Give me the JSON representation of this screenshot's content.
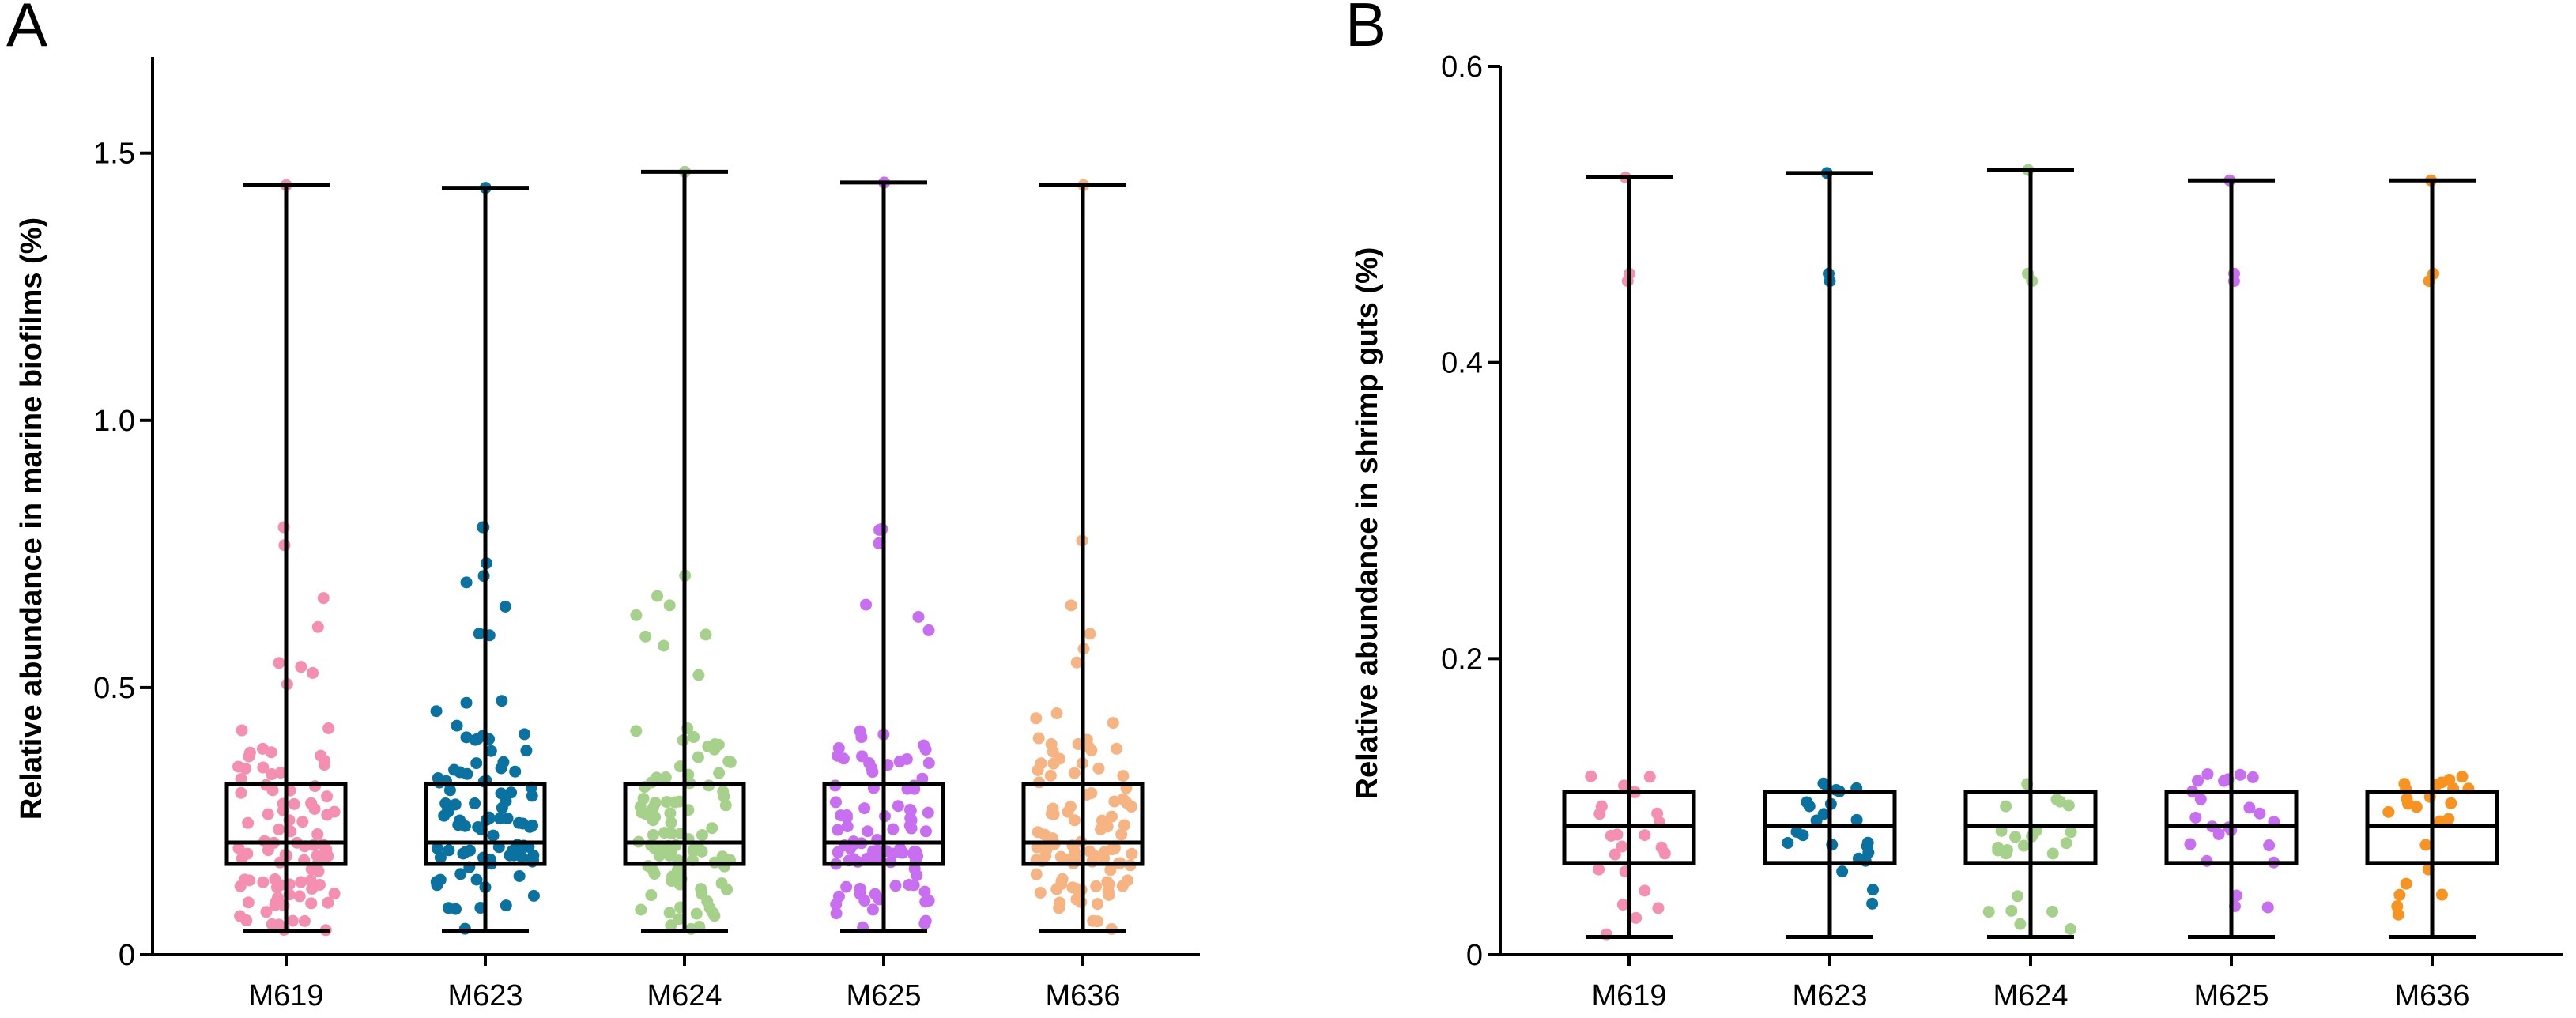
{
  "figure": {
    "panels": [
      {
        "id": "A",
        "letter": "A",
        "chart_data": {
          "type": "box",
          "ylabel": "Relative abundance in marine biofilms (%)",
          "ylim": [
            0,
            1.68
          ],
          "yticks": [
            0,
            0.5,
            1.0,
            1.5
          ],
          "ytick_labels": [
            "0",
            "0.5",
            "1.0",
            "1.5"
          ],
          "categories": [
            "M619",
            "M623",
            "M624",
            "M625",
            "M636"
          ],
          "colors": [
            "#f48fb1",
            "#0a72a0",
            "#a6d18a",
            "#c86ef0",
            "#f5b482"
          ],
          "box": {
            "min": 0.045,
            "q1": 0.17,
            "median": 0.21,
            "q3": 0.32,
            "max": 1.44
          },
          "series_max": [
            1.44,
            1.435,
            1.465,
            1.445,
            1.44
          ],
          "n_points": 100
        }
      },
      {
        "id": "B",
        "letter": "B",
        "chart_data": {
          "type": "box",
          "ylabel": "Relative abundance in shrimp guts (%)",
          "ylim": [
            0,
            0.6
          ],
          "yticks": [
            0,
            0.2,
            0.4,
            0.6
          ],
          "ytick_labels": [
            "0",
            "0.2",
            "0.4",
            "0.6"
          ],
          "categories": [
            "M619",
            "M623",
            "M624",
            "M625",
            "M636"
          ],
          "colors": [
            "#f48fb1",
            "#0a72a0",
            "#a6d18a",
            "#c86ef0",
            "#f7931e"
          ],
          "box": {
            "min": 0.012,
            "q1": 0.062,
            "median": 0.087,
            "q3": 0.11,
            "max": 0.525
          },
          "series_max": [
            0.525,
            0.528,
            0.53,
            0.523,
            0.523
          ],
          "outliers": [
            0.46,
            0.455
          ],
          "n_points": 26
        }
      }
    ]
  }
}
